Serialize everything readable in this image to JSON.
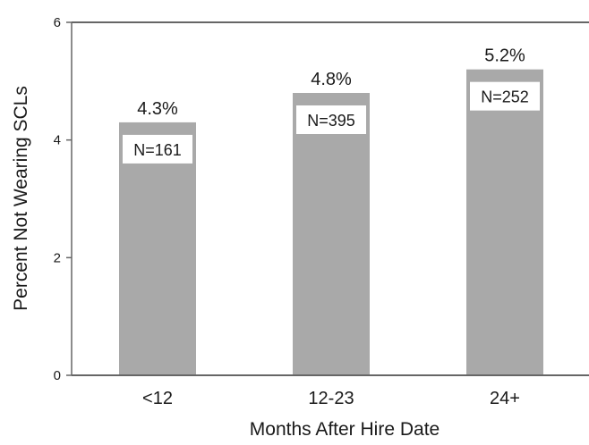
{
  "chart_data": {
    "type": "bar",
    "categories": [
      "<12",
      "12-23",
      "24+"
    ],
    "values": [
      4.3,
      4.8,
      5.2
    ],
    "value_labels": [
      "4.3%",
      "4.8%",
      "5.2%"
    ],
    "n_labels": [
      "N=161",
      "N=395",
      "N=252"
    ],
    "title": "",
    "xlabel": "Months After Hire Date",
    "ylabel": "Percent Not Wearing SCLs",
    "ylim": [
      0,
      6
    ],
    "yticks": [
      0,
      2,
      4,
      6
    ],
    "ytick_labels": [
      "0",
      "2",
      "4",
      "6"
    ],
    "grid": false,
    "legend": "none",
    "colors": {
      "bar": "#a9a9a9",
      "axis": "#666666",
      "label_box": "#ffffff"
    }
  }
}
